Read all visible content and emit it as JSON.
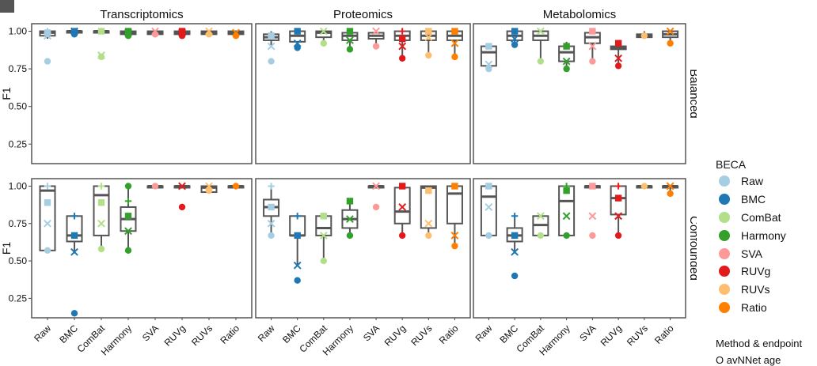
{
  "chart_data": {
    "type": "box",
    "columns": [
      "Transcriptomics",
      "Proteomics",
      "Metabolomics"
    ],
    "rows": [
      "Balanced",
      "Confounded"
    ],
    "categories": [
      "Raw",
      "BMC",
      "ComBat",
      "Harmony",
      "SVA",
      "RUVg",
      "RUVs",
      "Ratio"
    ],
    "ylabel": "F1",
    "yticks": [
      "0.25",
      "0.50",
      "0.75",
      "1.00"
    ],
    "ylim": [
      0.12,
      1.05
    ],
    "colors": {
      "Raw": "#a6cee3",
      "BMC": "#1f78b4",
      "ComBat": "#b2df8a",
      "Harmony": "#33a02c",
      "SVA": "#fb9a99",
      "RUVg": "#e31a1c",
      "RUVs": "#fdbf6f",
      "Ratio": "#ff7f00"
    },
    "panels": [
      {
        "row": "Balanced",
        "col": "Transcriptomics",
        "boxes": [
          {
            "cat": "Raw",
            "q1": 0.97,
            "med": 0.99,
            "q3": 1.0,
            "lo": 0.95,
            "hi": 1.0,
            "points": [
              0.8,
              0.97,
              0.99,
              1.0
            ]
          },
          {
            "cat": "BMC",
            "q1": 0.99,
            "med": 1.0,
            "q3": 1.0,
            "lo": 0.98,
            "hi": 1.0,
            "points": [
              0.98,
              1.0,
              1.0
            ]
          },
          {
            "cat": "ComBat",
            "q1": 0.99,
            "med": 1.0,
            "q3": 1.0,
            "lo": 0.98,
            "hi": 1.0,
            "points": [
              0.83,
              0.84,
              1.0
            ]
          },
          {
            "cat": "Harmony",
            "q1": 0.98,
            "med": 0.99,
            "q3": 1.0,
            "lo": 0.96,
            "hi": 1.0,
            "points": [
              0.97,
              0.99,
              1.0
            ]
          },
          {
            "cat": "SVA",
            "q1": 0.98,
            "med": 0.99,
            "q3": 1.0,
            "lo": 0.97,
            "hi": 1.0,
            "points": [
              0.98,
              1.0
            ]
          },
          {
            "cat": "RUVg",
            "q1": 0.98,
            "med": 0.99,
            "q3": 1.0,
            "lo": 0.97,
            "hi": 1.0,
            "points": [
              0.97,
              0.99,
              1.0
            ]
          },
          {
            "cat": "RUVs",
            "q1": 0.98,
            "med": 0.99,
            "q3": 1.0,
            "lo": 0.97,
            "hi": 1.0,
            "points": [
              0.98,
              1.0
            ]
          },
          {
            "cat": "Ratio",
            "q1": 0.98,
            "med": 0.99,
            "q3": 1.0,
            "lo": 0.97,
            "hi": 1.0,
            "points": [
              0.97,
              0.99
            ]
          }
        ]
      },
      {
        "row": "Balanced",
        "col": "Proteomics",
        "boxes": [
          {
            "cat": "Raw",
            "q1": 0.94,
            "med": 0.96,
            "q3": 0.98,
            "lo": 0.9,
            "hi": 1.0,
            "points": [
              0.8,
              0.9,
              0.97
            ]
          },
          {
            "cat": "BMC",
            "q1": 0.93,
            "med": 0.97,
            "q3": 1.0,
            "lo": 0.89,
            "hi": 1.0,
            "points": [
              0.89,
              0.92,
              1.0
            ]
          },
          {
            "cat": "ComBat",
            "q1": 0.96,
            "med": 0.99,
            "q3": 1.0,
            "lo": 0.92,
            "hi": 1.0,
            "points": [
              0.92,
              1.0
            ]
          },
          {
            "cat": "Harmony",
            "q1": 0.94,
            "med": 0.97,
            "q3": 0.99,
            "lo": 0.88,
            "hi": 1.0,
            "points": [
              0.88,
              0.94,
              1.0
            ]
          },
          {
            "cat": "SVA",
            "q1": 0.95,
            "med": 0.97,
            "q3": 0.99,
            "lo": 0.9,
            "hi": 1.0,
            "points": [
              0.9,
              1.0
            ]
          },
          {
            "cat": "RUVg",
            "q1": 0.94,
            "med": 0.97,
            "q3": 1.0,
            "lo": 0.82,
            "hi": 1.0,
            "points": [
              0.82,
              0.9,
              0.95,
              1.0
            ]
          },
          {
            "cat": "RUVs",
            "q1": 0.94,
            "med": 0.97,
            "q3": 1.0,
            "lo": 0.84,
            "hi": 1.0,
            "points": [
              0.84,
              0.96,
              1.0
            ]
          },
          {
            "cat": "Ratio",
            "q1": 0.94,
            "med": 0.97,
            "q3": 1.0,
            "lo": 0.83,
            "hi": 1.0,
            "points": [
              0.83,
              0.92,
              1.0
            ]
          }
        ]
      },
      {
        "row": "Balanced",
        "col": "Metabolomics",
        "boxes": [
          {
            "cat": "Raw",
            "q1": 0.77,
            "med": 0.86,
            "q3": 0.9,
            "lo": 0.75,
            "hi": 0.91,
            "points": [
              0.75,
              0.78,
              0.9
            ]
          },
          {
            "cat": "BMC",
            "q1": 0.94,
            "med": 0.97,
            "q3": 1.0,
            "lo": 0.91,
            "hi": 1.0,
            "points": [
              0.91,
              0.95,
              1.0
            ]
          },
          {
            "cat": "ComBat",
            "q1": 0.94,
            "med": 0.97,
            "q3": 1.0,
            "lo": 0.8,
            "hi": 1.0,
            "points": [
              0.8,
              1.0
            ]
          },
          {
            "cat": "Harmony",
            "q1": 0.8,
            "med": 0.86,
            "q3": 0.9,
            "lo": 0.75,
            "hi": 0.93,
            "points": [
              0.75,
              0.8,
              0.9
            ]
          },
          {
            "cat": "SVA",
            "q1": 0.92,
            "med": 0.96,
            "q3": 0.99,
            "lo": 0.8,
            "hi": 1.0,
            "points": [
              0.8,
              0.9,
              1.0
            ]
          },
          {
            "cat": "RUVg",
            "q1": 0.88,
            "med": 0.89,
            "q3": 0.9,
            "lo": 0.76,
            "hi": 0.93,
            "points": [
              0.77,
              0.82,
              0.92
            ]
          },
          {
            "cat": "RUVs",
            "q1": 0.96,
            "med": 0.97,
            "q3": 0.98,
            "lo": 0.95,
            "hi": 1.0,
            "points": [
              0.97
            ]
          },
          {
            "cat": "Ratio",
            "q1": 0.96,
            "med": 0.98,
            "q3": 1.0,
            "lo": 0.91,
            "hi": 1.0,
            "points": [
              0.92,
              1.0
            ]
          }
        ]
      },
      {
        "row": "Confounded",
        "col": "Transcriptomics",
        "boxes": [
          {
            "cat": "Raw",
            "q1": 0.57,
            "med": 0.97,
            "q3": 1.0,
            "lo": 0.57,
            "hi": 1.0,
            "points": [
              0.57,
              0.75,
              0.89,
              1.0
            ]
          },
          {
            "cat": "BMC",
            "q1": 0.63,
            "med": 0.67,
            "q3": 0.8,
            "lo": 0.55,
            "hi": 0.8,
            "points": [
              0.15,
              0.56,
              0.67,
              0.8
            ]
          },
          {
            "cat": "ComBat",
            "q1": 0.67,
            "med": 0.94,
            "q3": 1.0,
            "lo": 0.57,
            "hi": 1.0,
            "points": [
              0.58,
              0.75,
              0.89,
              1.0
            ]
          },
          {
            "cat": "Harmony",
            "q1": 0.7,
            "med": 0.78,
            "q3": 0.86,
            "lo": 0.57,
            "hi": 1.0,
            "points": [
              0.57,
              0.7,
              0.8,
              0.9,
              1.0
            ]
          },
          {
            "cat": "SVA",
            "q1": 0.99,
            "med": 1.0,
            "q3": 1.0,
            "lo": 0.99,
            "hi": 1.0,
            "points": [
              1.0
            ]
          },
          {
            "cat": "RUVg",
            "q1": 0.99,
            "med": 1.0,
            "q3": 1.0,
            "lo": 0.99,
            "hi": 1.0,
            "points": [
              0.86,
              1.0
            ]
          },
          {
            "cat": "RUVs",
            "q1": 0.96,
            "med": 0.99,
            "q3": 1.0,
            "lo": 0.95,
            "hi": 1.0,
            "points": [
              0.97,
              1.0
            ]
          },
          {
            "cat": "Ratio",
            "q1": 0.99,
            "med": 1.0,
            "q3": 1.0,
            "lo": 0.99,
            "hi": 1.0,
            "points": [
              1.0
            ]
          }
        ]
      },
      {
        "row": "Confounded",
        "col": "Proteomics",
        "boxes": [
          {
            "cat": "Raw",
            "q1": 0.8,
            "med": 0.86,
            "q3": 0.91,
            "lo": 0.67,
            "hi": 1.0,
            "points": [
              0.67,
              0.75,
              0.86,
              1.0
            ]
          },
          {
            "cat": "BMC",
            "q1": 0.67,
            "med": 0.67,
            "q3": 0.8,
            "lo": 0.47,
            "hi": 0.8,
            "points": [
              0.37,
              0.47,
              0.67,
              0.8
            ]
          },
          {
            "cat": "ComBat",
            "q1": 0.67,
            "med": 0.72,
            "q3": 0.8,
            "lo": 0.5,
            "hi": 0.8,
            "points": [
              0.5,
              0.67,
              0.8
            ]
          },
          {
            "cat": "Harmony",
            "q1": 0.72,
            "med": 0.78,
            "q3": 0.84,
            "lo": 0.67,
            "hi": 0.92,
            "points": [
              0.67,
              0.78,
              0.9
            ]
          },
          {
            "cat": "SVA",
            "q1": 0.99,
            "med": 1.0,
            "q3": 1.0,
            "lo": 0.99,
            "hi": 1.0,
            "points": [
              0.86,
              1.0
            ]
          },
          {
            "cat": "RUVg",
            "q1": 0.75,
            "med": 0.83,
            "q3": 0.99,
            "lo": 0.67,
            "hi": 1.0,
            "points": [
              0.67,
              0.86,
              1.0
            ]
          },
          {
            "cat": "RUVs",
            "q1": 0.72,
            "med": 0.99,
            "q3": 1.0,
            "lo": 0.67,
            "hi": 1.0,
            "points": [
              0.67,
              0.75,
              0.97
            ]
          },
          {
            "cat": "Ratio",
            "q1": 0.75,
            "med": 0.95,
            "q3": 1.0,
            "lo": 0.6,
            "hi": 1.0,
            "points": [
              0.6,
              0.67,
              1.0
            ]
          }
        ]
      },
      {
        "row": "Confounded",
        "col": "Metabolomics",
        "boxes": [
          {
            "cat": "Raw",
            "q1": 0.67,
            "med": 0.93,
            "q3": 1.0,
            "lo": 0.67,
            "hi": 1.0,
            "points": [
              0.67,
              0.86,
              1.0
            ]
          },
          {
            "cat": "BMC",
            "q1": 0.63,
            "med": 0.67,
            "q3": 0.72,
            "lo": 0.55,
            "hi": 0.8,
            "points": [
              0.4,
              0.56,
              0.67,
              0.8
            ]
          },
          {
            "cat": "ComBat",
            "q1": 0.67,
            "med": 0.74,
            "q3": 0.8,
            "lo": 0.67,
            "hi": 0.8,
            "points": [
              0.67,
              0.8
            ]
          },
          {
            "cat": "Harmony",
            "q1": 0.67,
            "med": 0.9,
            "q3": 1.0,
            "lo": 0.67,
            "hi": 1.0,
            "points": [
              0.67,
              0.8,
              0.97,
              1.0
            ]
          },
          {
            "cat": "SVA",
            "q1": 0.99,
            "med": 1.0,
            "q3": 1.0,
            "lo": 0.99,
            "hi": 1.0,
            "points": [
              0.67,
              0.8,
              1.0
            ]
          },
          {
            "cat": "RUVg",
            "q1": 0.81,
            "med": 0.92,
            "q3": 1.0,
            "lo": 0.67,
            "hi": 1.0,
            "points": [
              0.67,
              0.8,
              0.92,
              1.0
            ]
          },
          {
            "cat": "RUVs",
            "q1": 0.99,
            "med": 1.0,
            "q3": 1.0,
            "lo": 0.99,
            "hi": 1.0,
            "points": [
              1.0
            ]
          },
          {
            "cat": "Ratio",
            "q1": 0.99,
            "med": 1.0,
            "q3": 1.0,
            "lo": 0.95,
            "hi": 1.0,
            "points": [
              0.95,
              1.0
            ]
          }
        ]
      }
    ]
  },
  "legend": {
    "title": "BECA",
    "items": [
      {
        "label": "Raw",
        "color": "#a6cee3"
      },
      {
        "label": "BMC",
        "color": "#1f78b4"
      },
      {
        "label": "ComBat",
        "color": "#b2df8a"
      },
      {
        "label": "Harmony",
        "color": "#33a02c"
      },
      {
        "label": "SVA",
        "color": "#fb9a99"
      },
      {
        "label": "RUVg",
        "color": "#e31a1c"
      },
      {
        "label": "RUVs",
        "color": "#fdbf6f"
      },
      {
        "label": "Ratio",
        "color": "#ff7f00"
      }
    ]
  },
  "legend2": {
    "title": "Method & endpoint",
    "first_item": "O  avNNet age"
  }
}
